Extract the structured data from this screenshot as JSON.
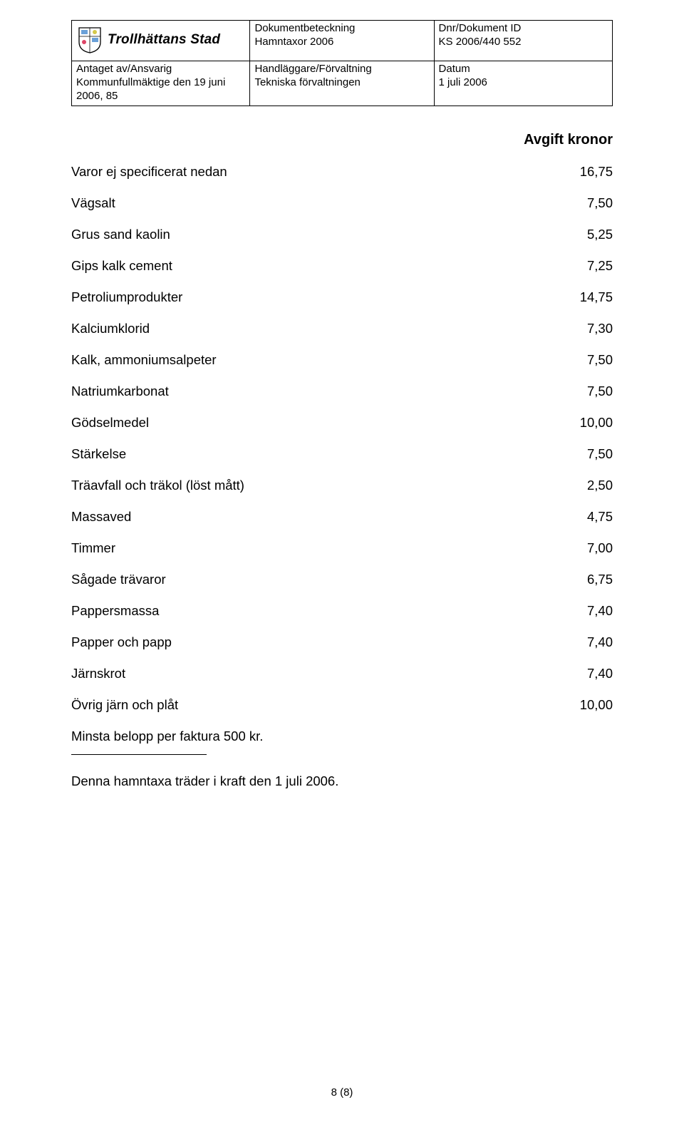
{
  "header": {
    "logo_text": "Trollhättans Stad",
    "col2_label1": "Dokumentbeteckning",
    "col2_value1": "Hamntaxor 2006",
    "col3_label1": "Dnr/Dokument ID",
    "col3_value1": "KS 2006/440 552",
    "col1_label2": "Antaget av/Ansvarig",
    "col1_value2a": "Kommunfullmäktige den 19 juni",
    "col1_value2b": "2006, 85",
    "col2_label2": "Handläggare/Förvaltning",
    "col2_value2": "Tekniska förvaltningen",
    "col3_label2": "Datum",
    "col3_value2": "1 juli 2006"
  },
  "fees": {
    "title": "Avgift kronor",
    "rows": [
      {
        "label": "Varor ej specificerat nedan",
        "value": "16,75"
      },
      {
        "label": "Vägsalt",
        "value": "7,50"
      },
      {
        "label": "Grus sand kaolin",
        "value": "5,25"
      },
      {
        "label": "Gips kalk cement",
        "value": "7,25"
      },
      {
        "label": "Petroliumprodukter",
        "value": "14,75"
      },
      {
        "label": "Kalciumklorid",
        "value": "7,30"
      },
      {
        "label": "Kalk, ammoniumsalpeter",
        "value": "7,50"
      },
      {
        "label": "Natriumkarbonat",
        "value": "7,50"
      },
      {
        "label": "Gödselmedel",
        "value": "10,00"
      },
      {
        "label": "Stärkelse",
        "value": "7,50"
      },
      {
        "label": "Träavfall och träkol (löst mått)",
        "value": "2,50"
      },
      {
        "label": "Massaved",
        "value": "4,75"
      },
      {
        "label": "Timmer",
        "value": "7,00"
      },
      {
        "label": "Sågade trävaror",
        "value": "6,75"
      },
      {
        "label": "Pappersmassa",
        "value": "7,40"
      },
      {
        "label": "Papper och papp",
        "value": "7,40"
      },
      {
        "label": "Järnskrot",
        "value": "7,40"
      },
      {
        "label": "Övrig järn och plåt",
        "value": "10,00"
      }
    ]
  },
  "note": "Minsta belopp per faktura 500 kr.",
  "effective": "Denna hamntaxa träder i kraft den 1 juli 2006.",
  "page_number": "8 (8)"
}
